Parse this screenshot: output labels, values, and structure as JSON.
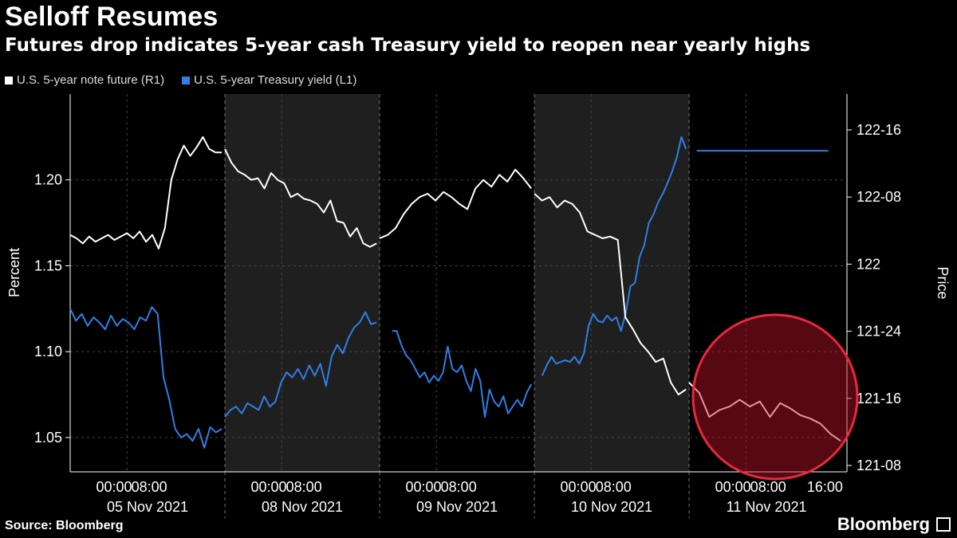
{
  "header": {
    "title": "Selloff Resumes",
    "subtitle": "Futures drop indicates 5-year cash Treasury yield to reopen near yearly highs"
  },
  "legend": {
    "items": [
      {
        "label": "U.S. 5-year note future (R1)",
        "color": "#ffffff"
      },
      {
        "label": "U.S. 5-year Treasury yield (L1)",
        "color": "#2f7fe6"
      }
    ]
  },
  "footer": {
    "source": "Source: Bloomberg",
    "brand": "Bloomberg"
  },
  "chart_data": {
    "type": "line",
    "ylabel_left": "Percent",
    "ylabel_right": "Price",
    "left_axis": {
      "min": 1.03,
      "max": 1.25,
      "ticks": [
        "1.05",
        "1.10",
        "1.15",
        "1.20"
      ],
      "tick_values": [
        1.05,
        1.1,
        1.15,
        1.2
      ]
    },
    "right_axis": {
      "ticks": [
        "121-08",
        "121-16",
        "121-24",
        "122",
        "122-08",
        "122-16"
      ]
    },
    "x_ticks": [
      {
        "time": "00:00",
        "day": 0
      },
      {
        "time": "08:00",
        "day": 0
      },
      {
        "time": "00:00",
        "day": 1
      },
      {
        "time": "08:00",
        "day": 1
      },
      {
        "time": "00:00",
        "day": 2
      },
      {
        "time": "08:00",
        "day": 2
      },
      {
        "time": "00:00",
        "day": 3
      },
      {
        "time": "08:00",
        "day": 3
      },
      {
        "time": "00:00",
        "day": 4
      },
      {
        "time": "08:00",
        "day": 4
      },
      {
        "time": "16:00",
        "day": 4
      }
    ],
    "days": [
      "05 Nov 2021",
      "08 Nov 2021",
      "09 Nov 2021",
      "10 Nov 2021",
      "11 Nov 2021"
    ],
    "shaded_days": [
      1,
      3
    ],
    "highlight": "circle around 11 Nov 2021 note future decline",
    "series": [
      {
        "name": "U.S. 5-year Treasury yield (L1)",
        "axis": "left",
        "color": "#2f7fe6",
        "segments": [
          {
            "start_day": 0.0,
            "values": [
              1.125,
              1.118,
              1.122,
              1.115,
              1.12,
              1.117,
              1.113,
              1.121,
              1.115,
              1.119,
              1.117,
              1.113,
              1.12,
              1.118,
              1.126,
              1.122,
              1.085,
              1.072,
              1.055,
              1.05,
              1.052,
              1.048,
              1.055,
              1.044,
              1.056,
              1.053,
              1.055
            ]
          },
          {
            "start_day": 1.0,
            "values": [
              1.062,
              1.066,
              1.068,
              1.064,
              1.07,
              1.068,
              1.066,
              1.074,
              1.068,
              1.071,
              1.082,
              1.088,
              1.085,
              1.09,
              1.084,
              1.092,
              1.086,
              1.093,
              1.08,
              1.097,
              1.104,
              1.099,
              1.108,
              1.114,
              1.117,
              1.123,
              1.116,
              1.117
            ]
          },
          {
            "start_day": 2.08,
            "values": [
              1.112,
              1.112,
              1.104,
              1.098,
              1.095,
              1.09,
              1.085,
              1.088,
              1.082,
              1.086,
              1.083,
              1.088,
              1.103,
              1.09,
              1.088,
              1.092,
              1.083,
              1.077,
              1.09,
              1.083,
              1.062,
              1.078,
              1.071,
              1.068,
              1.074,
              1.064,
              1.068,
              1.072,
              1.068,
              1.076,
              1.081
            ]
          },
          {
            "start_day": 3.05,
            "values": [
              1.086,
              1.092,
              1.097,
              1.093,
              1.094,
              1.095,
              1.094,
              1.097,
              1.093,
              1.099,
              1.115,
              1.122,
              1.118,
              1.117,
              1.121,
              1.118,
              1.12,
              1.112,
              1.122,
              1.138,
              1.14,
              1.155,
              1.162,
              1.175,
              1.18,
              1.187,
              1.192,
              1.198,
              1.205,
              1.213,
              1.225,
              1.218
            ]
          },
          {
            "start_day": 4.05,
            "values": [
              1.217,
              1.217
            ]
          }
        ]
      },
      {
        "name": "U.S. 5-year note future (R1)",
        "axis": "right",
        "color": "#ffffff",
        "segments": [
          {
            "start_day": 0.0,
            "values": [
              1.168,
              1.166,
              1.163,
              1.167,
              1.164,
              1.166,
              1.168,
              1.165,
              1.167,
              1.169,
              1.166,
              1.17,
              1.164,
              1.168,
              1.16,
              1.172,
              1.2,
              1.212,
              1.22,
              1.214,
              1.219,
              1.225,
              1.218,
              1.216,
              1.216
            ]
          },
          {
            "start_day": 1.0,
            "values": [
              1.218,
              1.21,
              1.205,
              1.203,
              1.2,
              1.201,
              1.195,
              1.204,
              1.2,
              1.198,
              1.19,
              1.192,
              1.189,
              1.188,
              1.186,
              1.181,
              1.188,
              1.176,
              1.175,
              1.167,
              1.172,
              1.163,
              1.161,
              1.163
            ]
          },
          {
            "start_day": 2.0,
            "values": [
              1.166,
              1.168,
              1.172,
              1.18,
              1.186,
              1.19,
              1.192,
              1.188,
              1.193,
              1.19,
              1.186,
              1.183,
              1.195,
              1.2,
              1.196,
              1.203,
              1.199,
              1.206,
              1.201,
              1.195
            ]
          },
          {
            "start_day": 3.0,
            "values": [
              1.192,
              1.188,
              1.19,
              1.184,
              1.188,
              1.186,
              1.181,
              1.17,
              1.168,
              1.166,
              1.167,
              1.165,
              1.12,
              1.113,
              1.105,
              1.1,
              1.094,
              1.096,
              1.082,
              1.075,
              1.078
            ]
          },
          {
            "start_day": 4.0,
            "values": [
              1.082,
              1.076,
              1.062,
              1.066,
              1.068,
              1.072,
              1.068,
              1.071,
              1.062,
              1.07,
              1.067,
              1.063,
              1.061,
              1.058,
              1.052,
              1.048
            ]
          }
        ]
      }
    ]
  }
}
